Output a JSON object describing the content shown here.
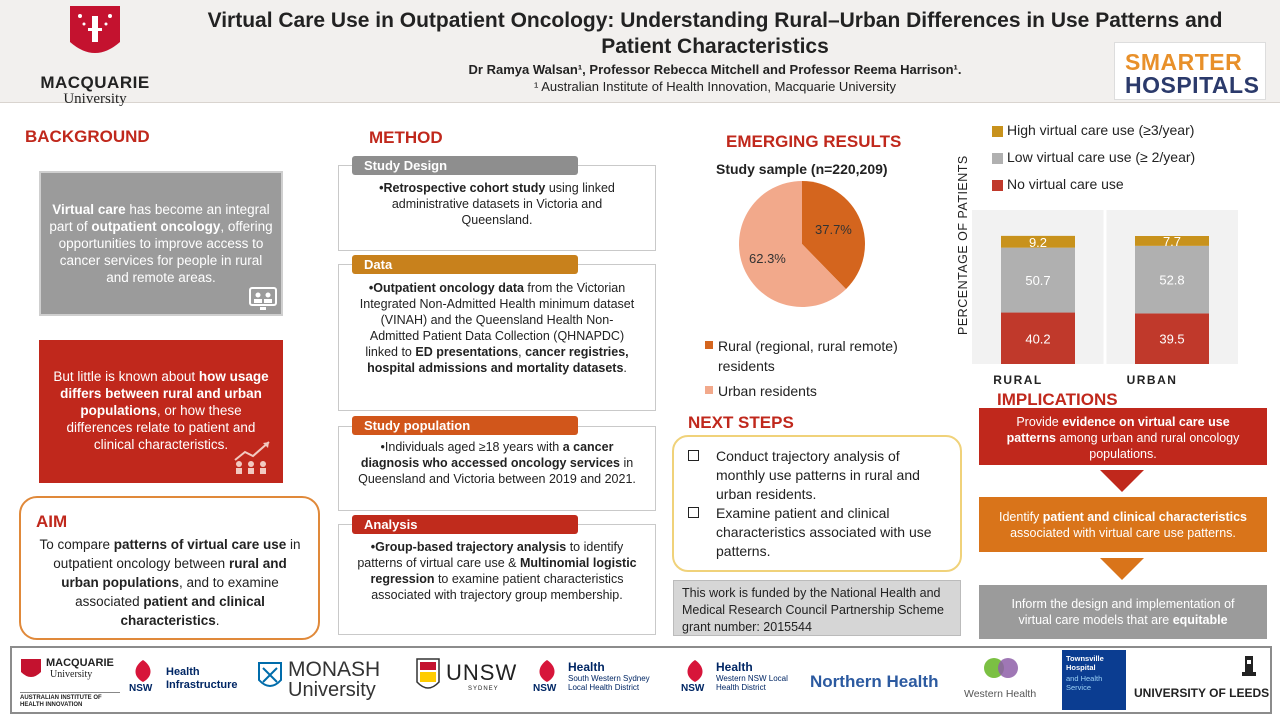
{
  "header": {
    "institution_name": "MACQUARIE",
    "institution_sub": "University",
    "title": "Virtual Care Use in Outpatient Oncology: Understanding Rural–Urban Differences in Use Patterns and Patient Characteristics",
    "authors": "Dr Ramya Walsan¹, Professor Rebecca Mitchell and Professor Reema Harrison¹.",
    "affiliation": "¹ Australian Institute of Health Innovation, Macquarie University",
    "partner_logo_top": "SMARTER",
    "partner_logo_bottom": "HOSPITALS"
  },
  "background": {
    "heading": "BACKGROUND",
    "box1_b1": "Virtual care",
    "box1_t1": " has become an integral part of ",
    "box1_b2": "outpatient oncology",
    "box1_t2": ", offering opportunities to improve access to cancer services for people in rural and remote areas.",
    "box2_t1": "But little is known about ",
    "box2_b1": "how usage differs between rural and urban populations",
    "box2_t2": ", or how these differences relate to patient and clinical characteristics."
  },
  "aim": {
    "heading": "AIM",
    "t1": "To compare ",
    "b1": "patterns of virtual care use",
    "t2": " in outpatient oncology between ",
    "b2": "rural and urban populations",
    "t3": ", and to examine associated ",
    "b3": "patient and clinical characteristics",
    "t4": "."
  },
  "method": {
    "heading": "METHOD",
    "design_tab": "Study Design",
    "design_b1": "•Retrospective cohort study",
    "design_t1": " using linked administrative datasets in Victoria and Queensland.",
    "data_tab": "Data",
    "data_b1": "•Outpatient oncology data",
    "data_t1": " from the Victorian Integrated Non-Admitted Health minimum dataset (VINAH) and the Queensland Health Non-Admitted Patient Data Collection (QHNAPDC) linked to ",
    "data_b2": "ED presentations",
    "data_t2": ", ",
    "data_b3": "cancer registries, hospital admissions and mortality datasets",
    "data_t3": ".",
    "pop_tab": "Study population",
    "pop_t1": "•Individuals aged ≥18 years with ",
    "pop_b1": "a cancer diagnosis who accessed oncology services",
    "pop_t2": " in Queensland and Victoria between 2019 and 2021.",
    "analysis_tab": "Analysis",
    "an_b1": "•Group-based trajectory analysis",
    "an_t1": " to identify patterns of virtual care use & ",
    "an_b2": "Multinomial logistic regression",
    "an_t2": " to examine patient characteristics associated with trajectory group membership."
  },
  "results": {
    "heading": "EMERGING RESULTS",
    "sample": "Study sample (n=220,209)",
    "pie_rural_label": "37.7%",
    "pie_urban_label": "62.3%",
    "legend_rural": "Rural (regional, rural remote) residents",
    "legend_urban": "Urban residents"
  },
  "next_steps": {
    "heading": "NEXT STEPS",
    "items": [
      "Conduct trajectory analysis of monthly use patterns in rural and urban residents.",
      "Examine patient and clinical characteristics associated with use patterns."
    ],
    "funding": "This work is funded by the National Health and Medical Research Council Partnership Scheme grant number: 2015544"
  },
  "implications": {
    "heading": "IMPLICATIONS",
    "box1_t1": "Provide ",
    "box1_b1": "evidence on virtual care use patterns",
    "box1_t2": " among urban and rural oncology populations.",
    "box2_t1": "Identify ",
    "box2_b1": "patient and clinical characteristics",
    "box2_t2": " associated with virtual care use patterns.",
    "box3_t1": "Inform the design and implementation of virtual care models that are ",
    "box3_b1": "equitable"
  },
  "colors": {
    "red": "#c0281c",
    "rural_pie": "#d4651e",
    "urban_pie": "#f2a98b",
    "high": "#c8921c",
    "low": "#b0b0b0",
    "none": "#c0392b",
    "orange": "#d9741a",
    "grey": "#9b9b9b"
  },
  "chart_data": [
    {
      "type": "pie",
      "title": "Study sample (n=220,209)",
      "categories": [
        "Rural (regional, rural remote) residents",
        "Urban residents"
      ],
      "values": [
        37.7,
        62.3
      ]
    },
    {
      "type": "bar",
      "stacked": true,
      "categories": [
        "RURAL",
        "URBAN"
      ],
      "ylabel": "PERCENTAGE OF PATIENTS",
      "legend_position": "top",
      "series": [
        {
          "name": "No virtual care use",
          "values": [
            40.2,
            39.5
          ]
        },
        {
          "name": "Low virtual care use (≥ 2/year)",
          "values": [
            50.7,
            52.8
          ]
        },
        {
          "name": "High virtual care use (≥3/year)",
          "values": [
            9.2,
            7.7
          ]
        }
      ],
      "ylim": [
        0,
        100
      ],
      "grid": false
    }
  ],
  "footer": {
    "logos": [
      {
        "name": "MACQUARIE",
        "sub": "University",
        "extra": "AUSTRALIAN INSTITUTE OF HEALTH INNOVATION"
      },
      {
        "name": "Health",
        "sub": "Infrastructure",
        "badge": "NSW"
      },
      {
        "name": "MONASH",
        "sub": "University"
      },
      {
        "name": "UNSW",
        "sub": "SYDNEY"
      },
      {
        "name": "Health",
        "sub": "South Western Sydney Local Health District",
        "badge": "NSW"
      },
      {
        "name": "Health",
        "sub": "Western NSW Local Health District",
        "badge": "NSW"
      },
      {
        "name": "Northern Health"
      },
      {
        "name": "Western Health"
      },
      {
        "name": "Townsville Hospital",
        "sub": "and Health Service"
      },
      {
        "name": "UNIVERSITY OF LEEDS"
      }
    ]
  }
}
